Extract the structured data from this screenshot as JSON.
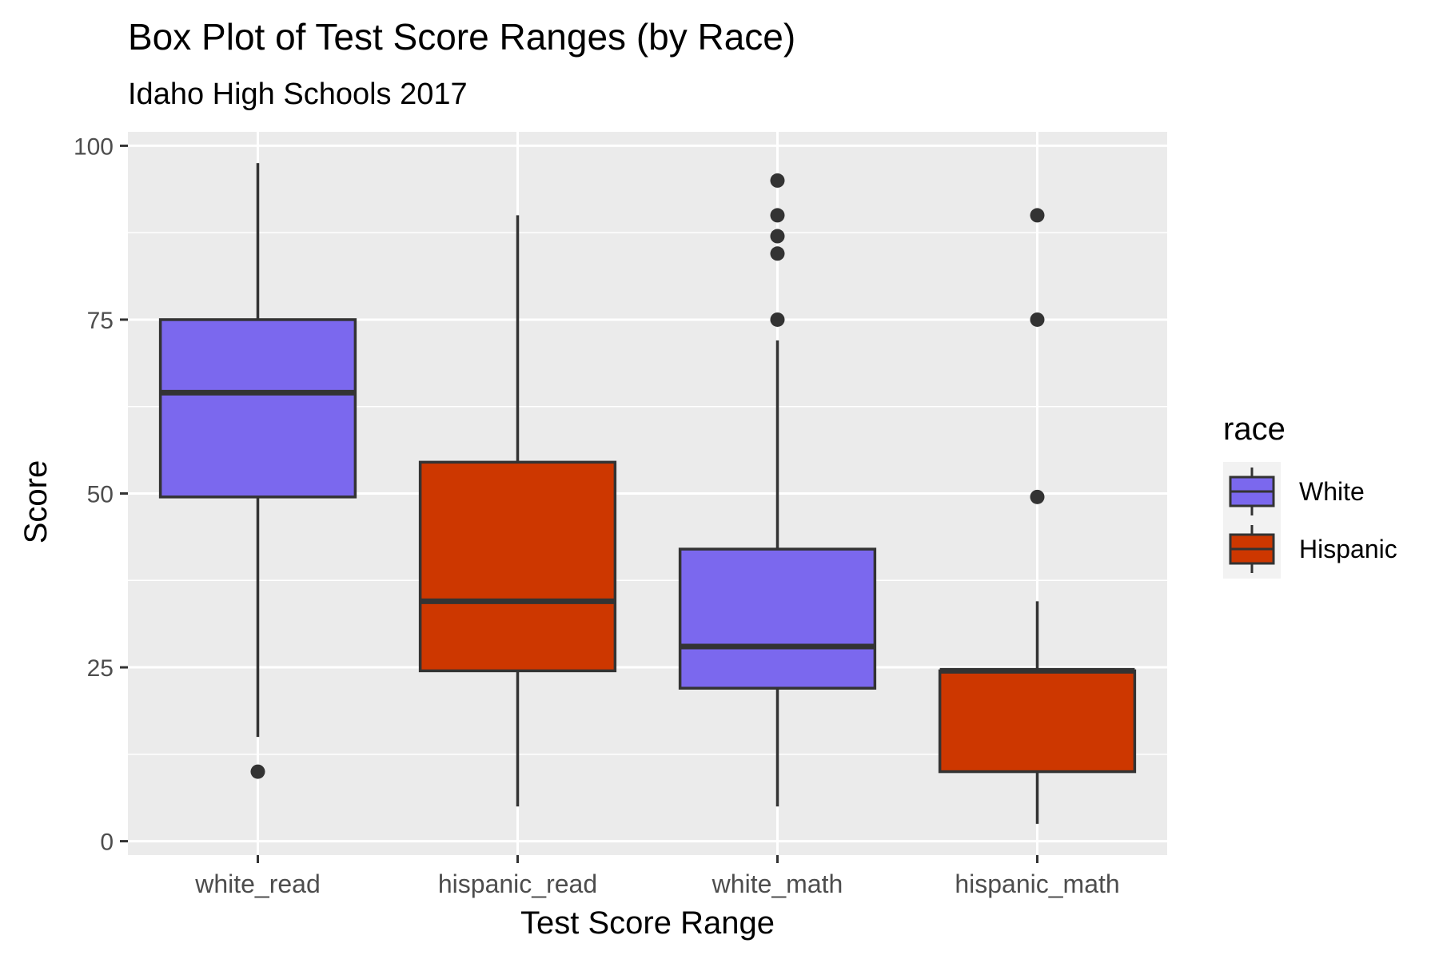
{
  "chart_data": {
    "type": "boxplot",
    "title": "Box Plot of Test Score Ranges (by Race)",
    "subtitle": "Idaho High Schools 2017",
    "xlabel": "Test Score Range",
    "ylabel": "Score",
    "ylim": [
      -2,
      102
    ],
    "yticks": [
      0,
      25,
      50,
      75,
      100
    ],
    "yticks_labels": [
      "0",
      "25",
      "50",
      "75",
      "100"
    ],
    "grid": true,
    "categories": [
      "white_read",
      "hispanic_read",
      "white_math",
      "hispanic_math"
    ],
    "boxes": [
      {
        "category": "white_read",
        "race": "White",
        "whisker_low": 15,
        "q1": 49.5,
        "median": 64.5,
        "q3": 75,
        "whisker_high": 97.5,
        "outliers": [
          10
        ]
      },
      {
        "category": "hispanic_read",
        "race": "Hispanic",
        "whisker_low": 5,
        "q1": 24.5,
        "median": 34.5,
        "q3": 54.5,
        "whisker_high": 90,
        "outliers": []
      },
      {
        "category": "white_math",
        "race": "White",
        "whisker_low": 5,
        "q1": 22,
        "median": 28,
        "q3": 42,
        "whisker_high": 72,
        "outliers": [
          75,
          84.5,
          87,
          90,
          95
        ]
      },
      {
        "category": "hispanic_math",
        "race": "Hispanic",
        "whisker_low": 2.5,
        "q1": 10,
        "median": 24.5,
        "q3": 24.5,
        "whisker_high": 34.5,
        "outliers": [
          49.5,
          75,
          90
        ]
      }
    ],
    "legend": {
      "title": "race",
      "placement": "right",
      "items": [
        {
          "label": "White",
          "color": "#7B68EE"
        },
        {
          "label": "Hispanic",
          "color": "#CD3700"
        }
      ]
    },
    "colors": {
      "White": "#7B68EE",
      "Hispanic": "#CD3700",
      "panel": "#EBEBEB",
      "grid": "#FFFFFF",
      "line": "#333333"
    }
  }
}
